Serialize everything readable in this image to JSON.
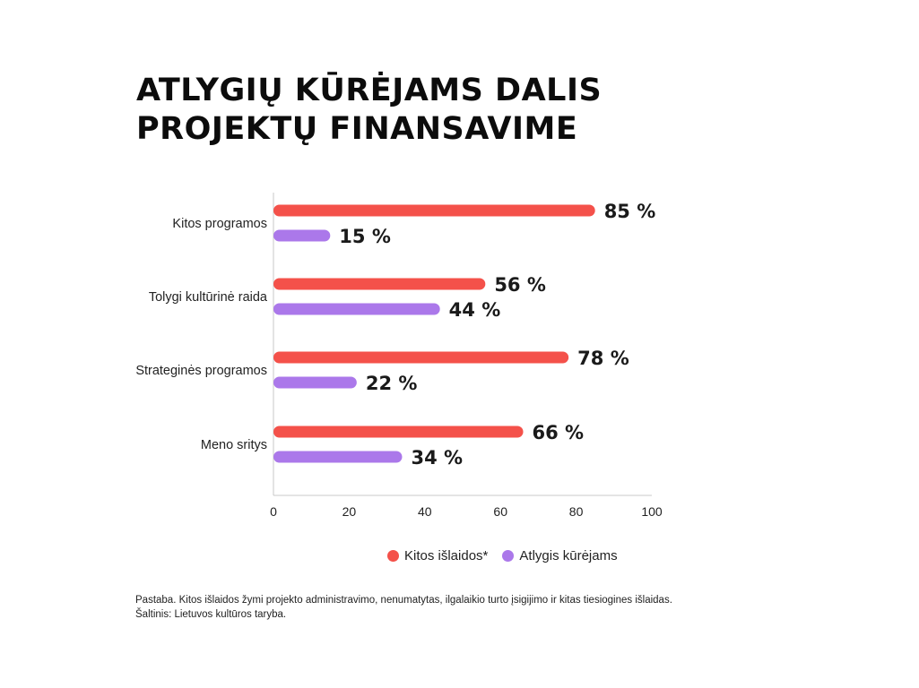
{
  "title_lines": [
    "ATLYGIŲ KŪRĖJAMS DALIS",
    "PROJEKTŲ FINANSAVIME"
  ],
  "colors": {
    "other": "#f4514a",
    "reward": "#ab78ea",
    "axis": "#c8c8c8"
  },
  "chart_data": {
    "type": "bar",
    "orientation": "horizontal",
    "title": "ATLYGIŲ KŪRĖJAMS DALIS PROJEKTŲ FINANSAVIME",
    "categories": [
      "Kitos programos",
      "Tolygi kultūrinė raida",
      "Strateginės programos",
      "Meno sritys"
    ],
    "series": [
      {
        "name": "Kitos išlaidos*",
        "values": [
          85,
          56,
          78,
          66
        ]
      },
      {
        "name": "Atlygis kūrėjams",
        "values": [
          15,
          44,
          22,
          34
        ]
      }
    ],
    "value_labels": [
      [
        "85 %",
        "56 %",
        "78 %",
        "66 %"
      ],
      [
        "15 %",
        "44 %",
        "22 %",
        "34 %"
      ]
    ],
    "xlim": [
      0,
      100
    ],
    "xticks": [
      "0",
      "20",
      "40",
      "60",
      "80",
      "100"
    ],
    "grid": false,
    "legend": "bottom"
  },
  "legend": {
    "other_label": "Kitos išlaidos*",
    "reward_label": "Atlygis kūrėjams"
  },
  "notes": {
    "note": "Pastaba. Kitos išlaidos žymi projekto administravimo, nenumatytas, ilgalaikio turto įsigijimo ir kitas tiesiogines išlaidas.",
    "source": "Šaltinis: Lietuvos kultūros taryba."
  }
}
